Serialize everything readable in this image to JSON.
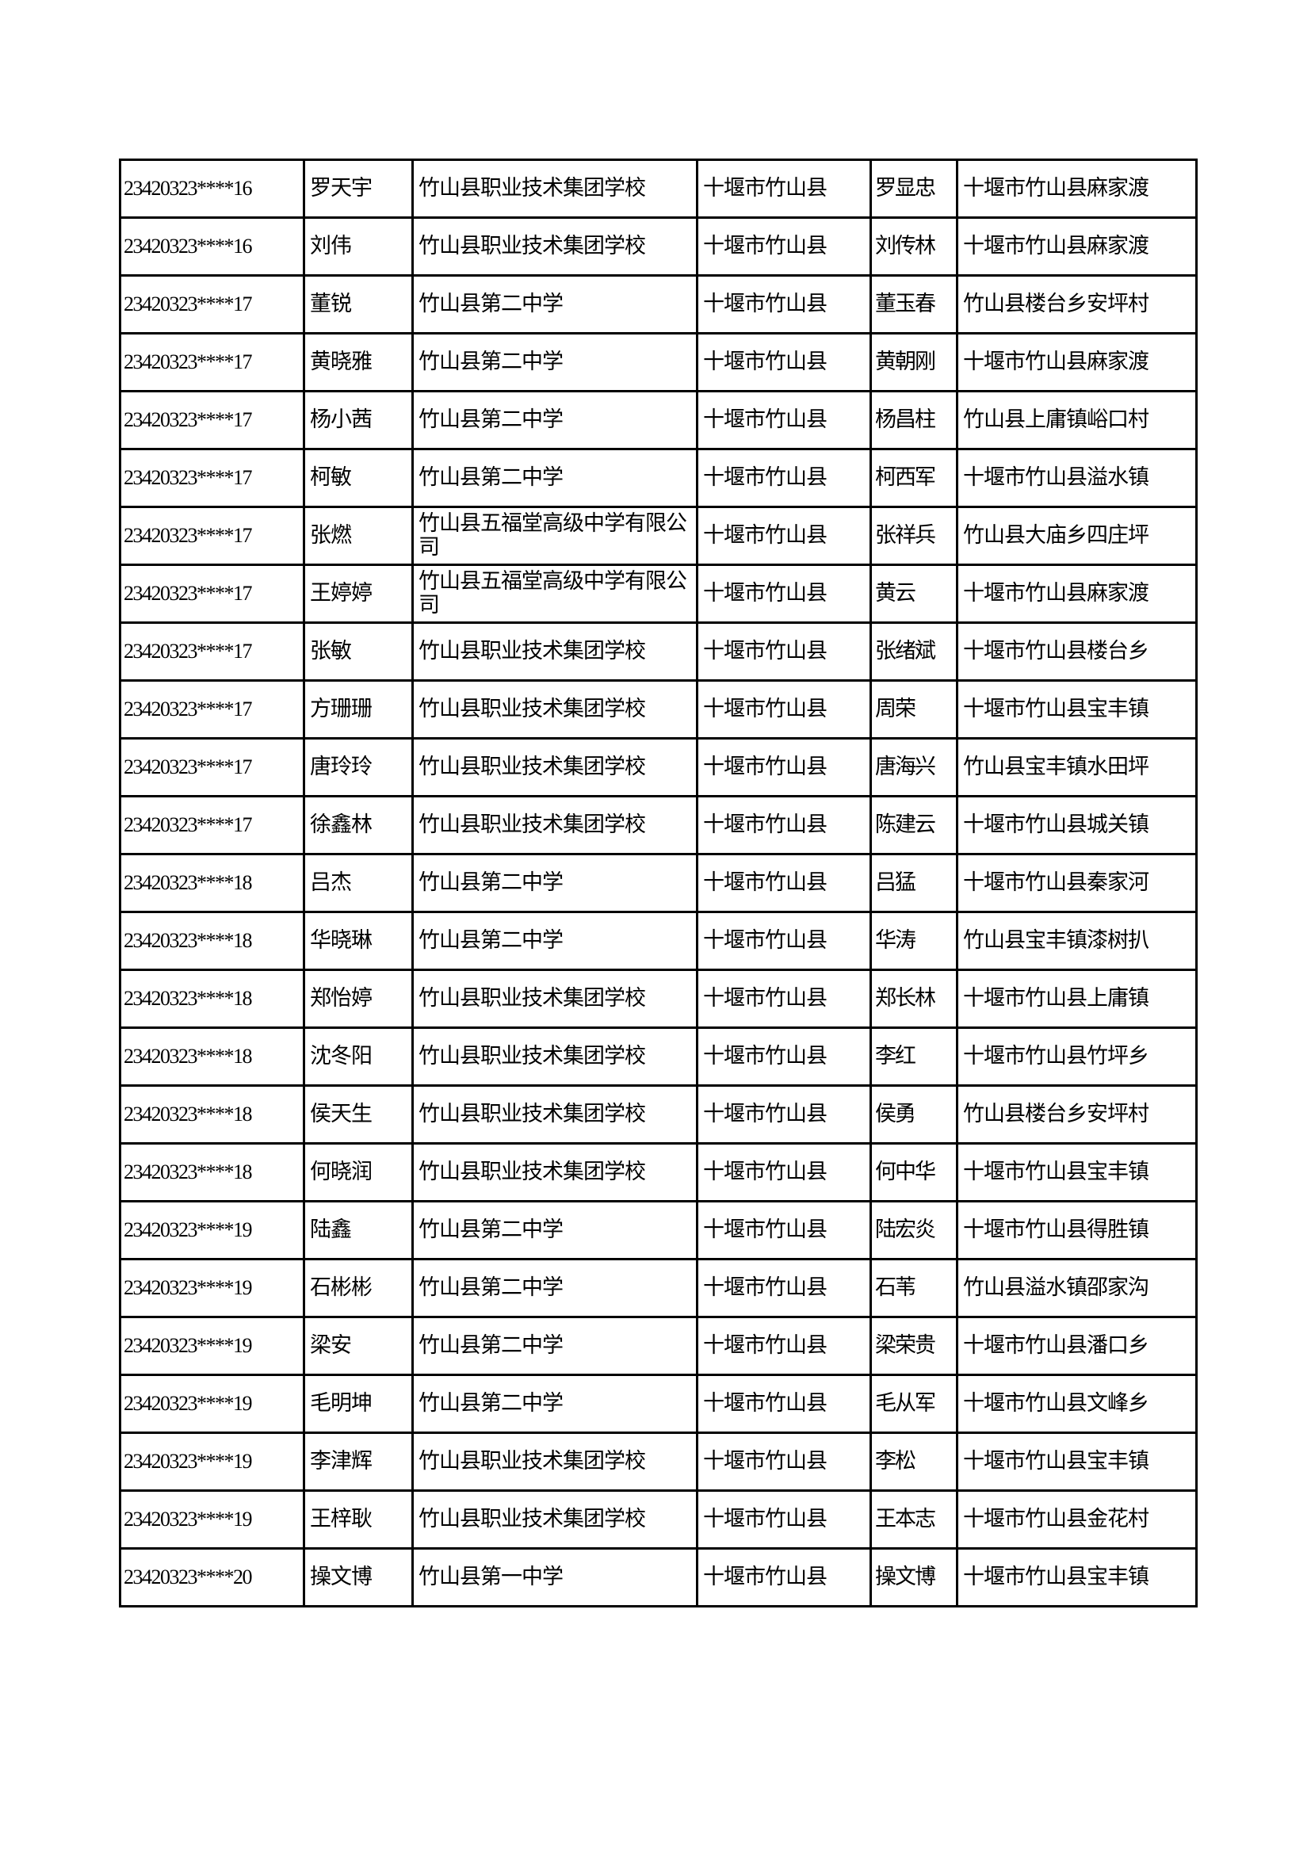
{
  "rows": [
    [
      "23420323****16",
      "罗天宇",
      "竹山县职业技术集团学校",
      "十堰市竹山县",
      "罗显忠",
      "十堰市竹山县麻家渡"
    ],
    [
      "23420323****16",
      "刘伟",
      "竹山县职业技术集团学校",
      "十堰市竹山县",
      "刘传林",
      "十堰市竹山县麻家渡"
    ],
    [
      "23420323****17",
      "董锐",
      "竹山县第二中学",
      "十堰市竹山县",
      "董玉春",
      "竹山县楼台乡安坪村"
    ],
    [
      "23420323****17",
      "黄晓雅",
      "竹山县第二中学",
      "十堰市竹山县",
      "黄朝刚",
      "十堰市竹山县麻家渡"
    ],
    [
      "23420323****17",
      "杨小茜",
      "竹山县第二中学",
      "十堰市竹山县",
      "杨昌柱",
      "竹山县上庸镇峪口村"
    ],
    [
      "23420323****17",
      "柯敏",
      "竹山县第二中学",
      "十堰市竹山县",
      "柯西军",
      "十堰市竹山县溢水镇"
    ],
    [
      "23420323****17",
      "张燃",
      "竹山县五福堂高级中学有限公司",
      "十堰市竹山县",
      "张祥兵",
      "竹山县大庙乡四庄坪"
    ],
    [
      "23420323****17",
      "王婷婷",
      "竹山县五福堂高级中学有限公司",
      "十堰市竹山县",
      "黄云",
      "十堰市竹山县麻家渡"
    ],
    [
      "23420323****17",
      "张敏",
      "竹山县职业技术集团学校",
      "十堰市竹山县",
      "张绪斌",
      "十堰市竹山县楼台乡"
    ],
    [
      "23420323****17",
      "方珊珊",
      "竹山县职业技术集团学校",
      "十堰市竹山县",
      "周荣",
      "十堰市竹山县宝丰镇"
    ],
    [
      "23420323****17",
      "唐玲玲",
      "竹山县职业技术集团学校",
      "十堰市竹山县",
      "唐海兴",
      "竹山县宝丰镇水田坪"
    ],
    [
      "23420323****17",
      "徐鑫林",
      "竹山县职业技术集团学校",
      "十堰市竹山县",
      "陈建云",
      "十堰市竹山县城关镇"
    ],
    [
      "23420323****18",
      "吕杰",
      "竹山县第二中学",
      "十堰市竹山县",
      "吕猛",
      "十堰市竹山县秦家河"
    ],
    [
      "23420323****18",
      "华晓琳",
      "竹山县第二中学",
      "十堰市竹山县",
      "华涛",
      "竹山县宝丰镇漆树扒"
    ],
    [
      "23420323****18",
      "郑怡婷",
      "竹山县职业技术集团学校",
      "十堰市竹山县",
      "郑长林",
      "十堰市竹山县上庸镇"
    ],
    [
      "23420323****18",
      "沈冬阳",
      "竹山县职业技术集团学校",
      "十堰市竹山县",
      "李红",
      "十堰市竹山县竹坪乡"
    ],
    [
      "23420323****18",
      "侯天生",
      "竹山县职业技术集团学校",
      "十堰市竹山县",
      "侯勇",
      "竹山县楼台乡安坪村"
    ],
    [
      "23420323****18",
      "何晓润",
      "竹山县职业技术集团学校",
      "十堰市竹山县",
      "何中华",
      "十堰市竹山县宝丰镇"
    ],
    [
      "23420323****19",
      "陆鑫",
      "竹山县第二中学",
      "十堰市竹山县",
      "陆宏炎",
      "十堰市竹山县得胜镇"
    ],
    [
      "23420323****19",
      "石彬彬",
      "竹山县第二中学",
      "十堰市竹山县",
      "石苇",
      "竹山县溢水镇邵家沟"
    ],
    [
      "23420323****19",
      "梁安",
      "竹山县第二中学",
      "十堰市竹山县",
      "梁荣贵",
      "十堰市竹山县潘口乡"
    ],
    [
      "23420323****19",
      "毛明坤",
      "竹山县第二中学",
      "十堰市竹山县",
      "毛从军",
      "十堰市竹山县文峰乡"
    ],
    [
      "23420323****19",
      "李津辉",
      "竹山县职业技术集团学校",
      "十堰市竹山县",
      "李松",
      "十堰市竹山县宝丰镇"
    ],
    [
      "23420323****19",
      "王梓耿",
      "竹山县职业技术集团学校",
      "十堰市竹山县",
      "王本志",
      "十堰市竹山县金花村"
    ],
    [
      "23420323****20",
      "操文博",
      "竹山县第一中学",
      "十堰市竹山县",
      "操文博",
      "十堰市竹山县宝丰镇"
    ]
  ]
}
